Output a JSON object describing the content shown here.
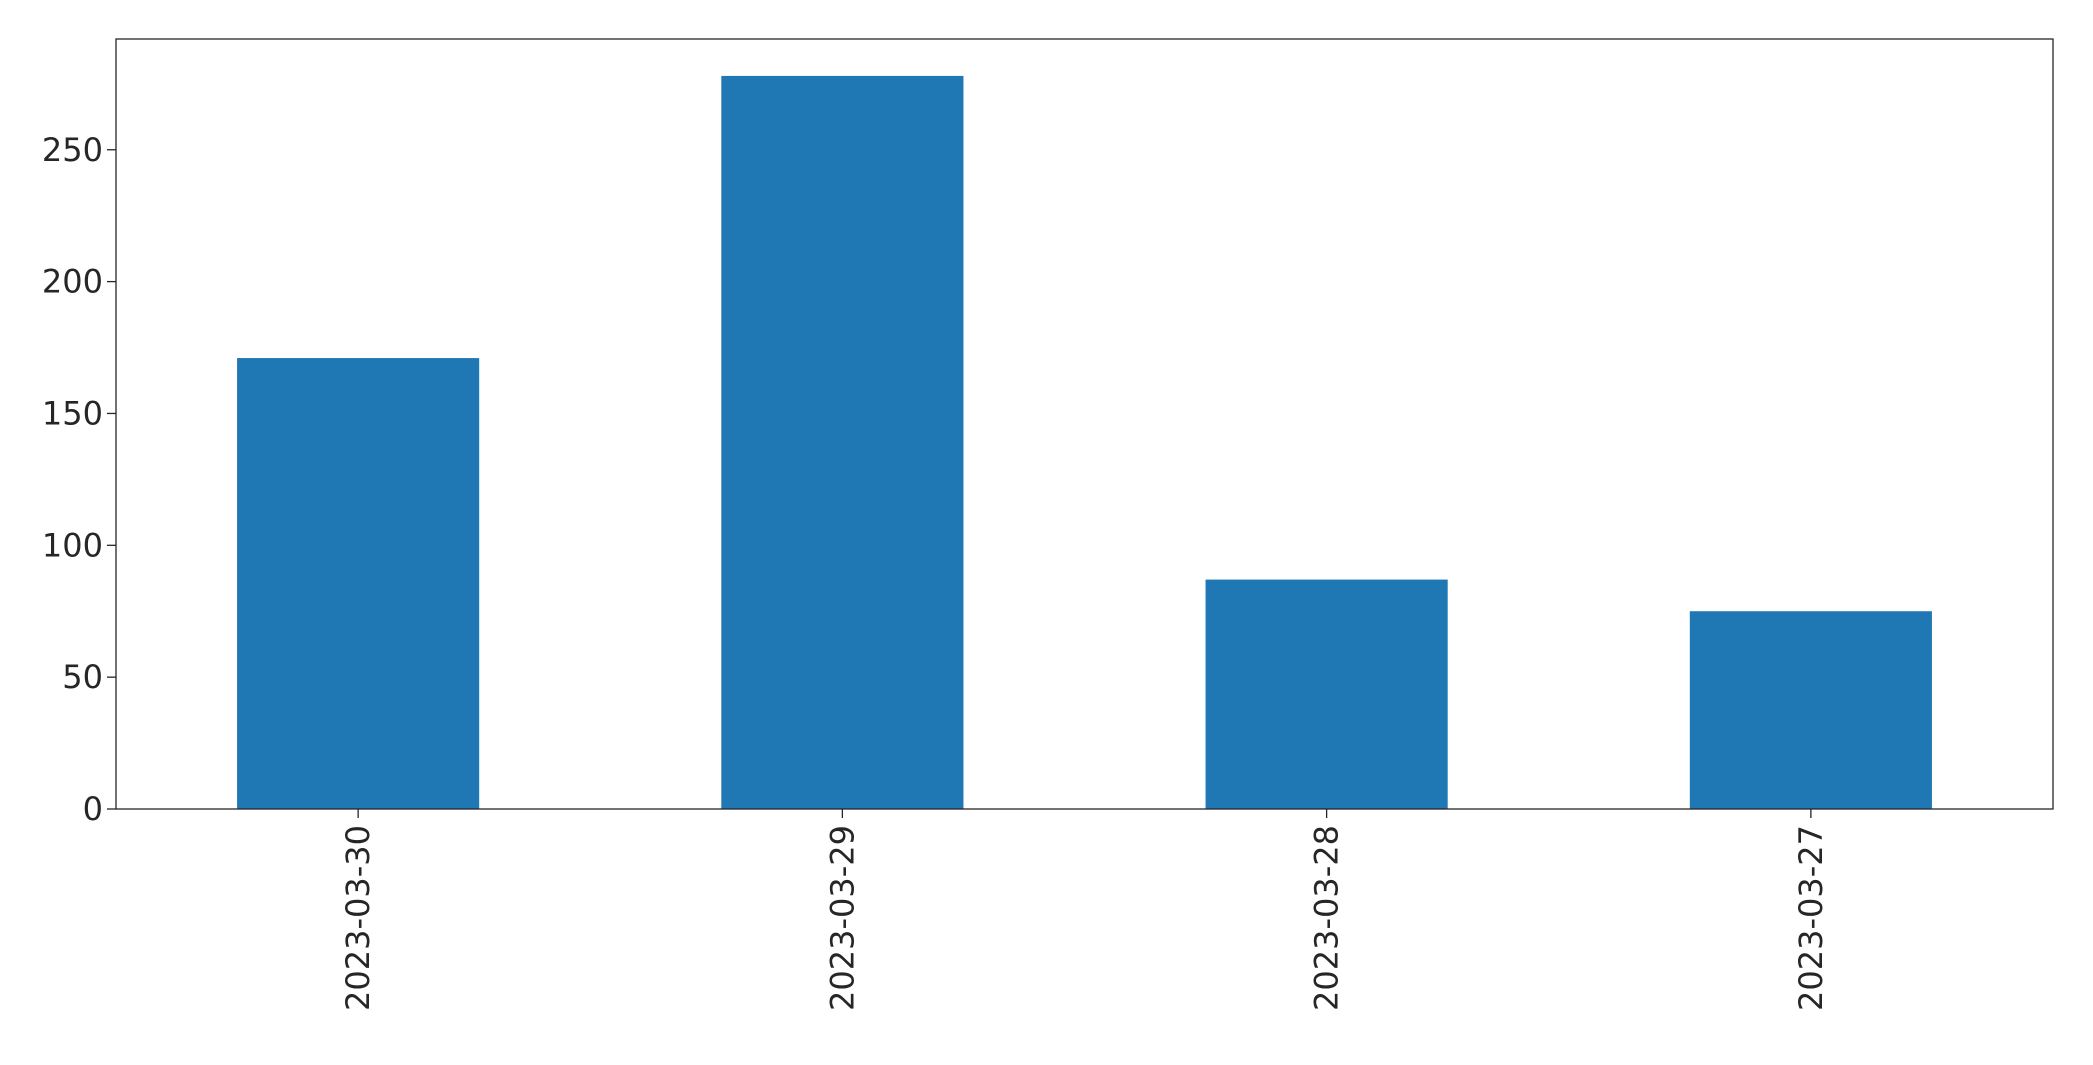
{
  "chart_data": {
    "type": "bar",
    "title": "",
    "xlabel": "",
    "ylabel": "",
    "categories": [
      "2023-03-30",
      "2023-03-29",
      "2023-03-28",
      "2023-03-27"
    ],
    "values": [
      171,
      278,
      87,
      75
    ],
    "ylim": [
      0,
      292
    ],
    "yticks": [
      0,
      50,
      100,
      150,
      200,
      250
    ],
    "bar_color": "#1f77b4",
    "x_tick_label_rotation": "vertical",
    "grid": false,
    "legend": "none"
  }
}
